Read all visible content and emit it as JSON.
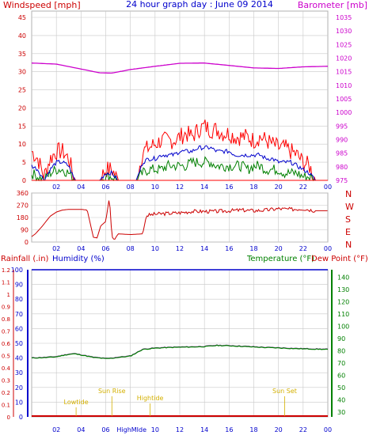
{
  "header": {
    "left_label": "Windspeed [mph]",
    "title": "24 hour graph day : June 09 2014",
    "right_label": "Barometer [mb]"
  },
  "colors": {
    "background": "#ffffff",
    "frame": "#b0b0b0",
    "grid": "#c8c8c8",
    "windspeed": "#ff0000",
    "wind_avg": "#0000cc",
    "wind_other": "#008000",
    "barometer": "#cc00cc",
    "direction": "#cc0000",
    "rainfall": "#cc0000",
    "humidity": "#0000cc",
    "temperature": "#008000",
    "dewpoint": "#cc0000",
    "temp_trace": "#8b2fa8",
    "annotation": "#d4b000",
    "label_red": "#cc0000",
    "label_blue": "#0000cc",
    "label_green": "#008000",
    "label_magenta": "#cc00cc"
  },
  "panel3_labels": {
    "rainfall": "Rainfall (.in)",
    "humidity": "Humidity (%)",
    "temperature": "Temperature (°F)",
    "dewpoint": "Dew Point (°F)"
  },
  "direction_labels": [
    "N",
    "W",
    "S",
    "E",
    "N"
  ],
  "x_ticks": [
    "02",
    "04",
    "06",
    "08",
    "10",
    "12",
    "14",
    "16",
    "18",
    "20",
    "22",
    "00"
  ],
  "chart_data": [
    {
      "type": "line",
      "name": "wind-barometer",
      "x_range_hours": [
        0,
        24
      ],
      "y_left": {
        "label": "Windspeed [mph]",
        "ticks": [
          0,
          5,
          10,
          15,
          20,
          25,
          30,
          35,
          40,
          45
        ],
        "range": [
          0,
          45
        ]
      },
      "y_right": {
        "label": "Barometer [mb]",
        "ticks": [
          975,
          980,
          985,
          990,
          995,
          1000,
          1005,
          1010,
          1015,
          1020,
          1025,
          1030,
          1035
        ],
        "range": [
          975,
          1035
        ]
      },
      "barometer": {
        "x": [
          0,
          2,
          4,
          5.5,
          6.5,
          8,
          10,
          12,
          14,
          16,
          18,
          20,
          22,
          24
        ],
        "y": [
          1018.2,
          1017.8,
          1016.0,
          1014.6,
          1014.5,
          1015.8,
          1017.0,
          1018.1,
          1018.2,
          1017.3,
          1016.4,
          1016.2,
          1016.8,
          1017.0
        ]
      },
      "wind_envelope": {
        "x": [
          0,
          0.5,
          1,
          1.5,
          2,
          2.5,
          3,
          3.5,
          4,
          4.5,
          5,
          5.5,
          6,
          6.5,
          7,
          7.5,
          8,
          8.5,
          9,
          9.5,
          10,
          10.5,
          11,
          11.5,
          12,
          12.5,
          13,
          13.5,
          14,
          14.5,
          15,
          15.5,
          16,
          16.5,
          17,
          17.5,
          18,
          18.5,
          19,
          19.5,
          20,
          20.5,
          21,
          21.5,
          22,
          22.5,
          23,
          23.5,
          24
        ],
        "max_gust": [
          8,
          6,
          1,
          6,
          8,
          8,
          6,
          0,
          0,
          0,
          0,
          0,
          3,
          3,
          0,
          0,
          0,
          0,
          8,
          9,
          10,
          11,
          11,
          11,
          12,
          13,
          12,
          14,
          15,
          14,
          14,
          13,
          13,
          12,
          12,
          12,
          11,
          12,
          11,
          10,
          9,
          9,
          8,
          7,
          5,
          4,
          0,
          0,
          0
        ],
        "avg": [
          4,
          3,
          0,
          3,
          5,
          5,
          4,
          0,
          0,
          0,
          0,
          0,
          2,
          2,
          0,
          0,
          0,
          0,
          5,
          6,
          6,
          7,
          7,
          7,
          8,
          8,
          8,
          9,
          9,
          9,
          8,
          8,
          8,
          7,
          7,
          7,
          7,
          7,
          6,
          6,
          5,
          5,
          5,
          4,
          3,
          2,
          0,
          0,
          0
        ],
        "lull": [
          2,
          1,
          0,
          2,
          3,
          3,
          2,
          0,
          0,
          0,
          0,
          0,
          1,
          1,
          0,
          0,
          0,
          0,
          2,
          3,
          3,
          3,
          4,
          4,
          4,
          4,
          5,
          5,
          5,
          5,
          4,
          4,
          4,
          4,
          4,
          3,
          4,
          4,
          3,
          3,
          3,
          2,
          2,
          2,
          1,
          1,
          0,
          0,
          0
        ]
      }
    },
    {
      "type": "line",
      "name": "wind-direction",
      "y_ticks": [
        0,
        90,
        180,
        270,
        360
      ],
      "y_range": [
        0,
        360
      ],
      "x": [
        0,
        0.3,
        0.8,
        1.5,
        2.0,
        2.5,
        3.0,
        3.5,
        4.0,
        4.5,
        5.0,
        5.3,
        5.6,
        6.0,
        6.3,
        6.5,
        6.7,
        7.0,
        8.0,
        9.0,
        9.3,
        10,
        11,
        12,
        13,
        14,
        15,
        16,
        17,
        18,
        19,
        20,
        21,
        22,
        23,
        24
      ],
      "y": [
        40,
        60,
        110,
        190,
        220,
        235,
        240,
        240,
        240,
        235,
        35,
        30,
        120,
        150,
        330,
        40,
        15,
        60,
        55,
        60,
        195,
        205,
        210,
        215,
        225,
        225,
        225,
        230,
        235,
        230,
        235,
        245,
        240,
        245,
        230,
        230
      ]
    },
    {
      "type": "line",
      "name": "rain-humidity-temperature",
      "y_left": {
        "ticks": [
          0,
          0.1,
          0.2,
          0.3,
          0.4,
          0.5,
          0.6,
          0.7,
          0.8,
          0.9,
          1,
          1.1,
          1.2
        ],
        "range": [
          0,
          1.2
        ]
      },
      "y_humidity": {
        "ticks": [
          0,
          10,
          20,
          30,
          40,
          50,
          60,
          70,
          80,
          90,
          100
        ],
        "range": [
          0,
          100
        ]
      },
      "y_right": {
        "ticks": [
          30,
          40,
          50,
          60,
          70,
          80,
          90,
          100,
          110,
          120,
          130,
          140
        ],
        "range": [
          26,
          146
        ]
      },
      "temperature": {
        "x": [
          0,
          1,
          2,
          3,
          3.5,
          4,
          5,
          6,
          6.5,
          7,
          8,
          9,
          10,
          11,
          12,
          13,
          14,
          15,
          16,
          17,
          18,
          19,
          20,
          21,
          22,
          23,
          24
        ],
        "y": [
          74,
          74.3,
          75,
          77,
          77.4,
          76.5,
          74.5,
          73.5,
          73.8,
          74.5,
          75.5,
          81,
          82,
          82.5,
          82.8,
          83,
          83.3,
          84.2,
          84,
          83.5,
          83,
          82.5,
          82.2,
          81.8,
          81.5,
          81.2,
          81
        ]
      },
      "rainfall": {
        "x": [
          0,
          24
        ],
        "y": [
          0,
          0
        ]
      },
      "humidity_max_line": 100,
      "annotations": [
        {
          "label": "Lowtide",
          "hour": 3.6
        },
        {
          "label": "Sun Rise",
          "hour": 6.5
        },
        {
          "label": "Hightide",
          "hour": 9.6
        },
        {
          "label": "Sun Set",
          "hour": 20.5
        }
      ],
      "x_extra_labels": [
        "HighMIde"
      ]
    }
  ]
}
